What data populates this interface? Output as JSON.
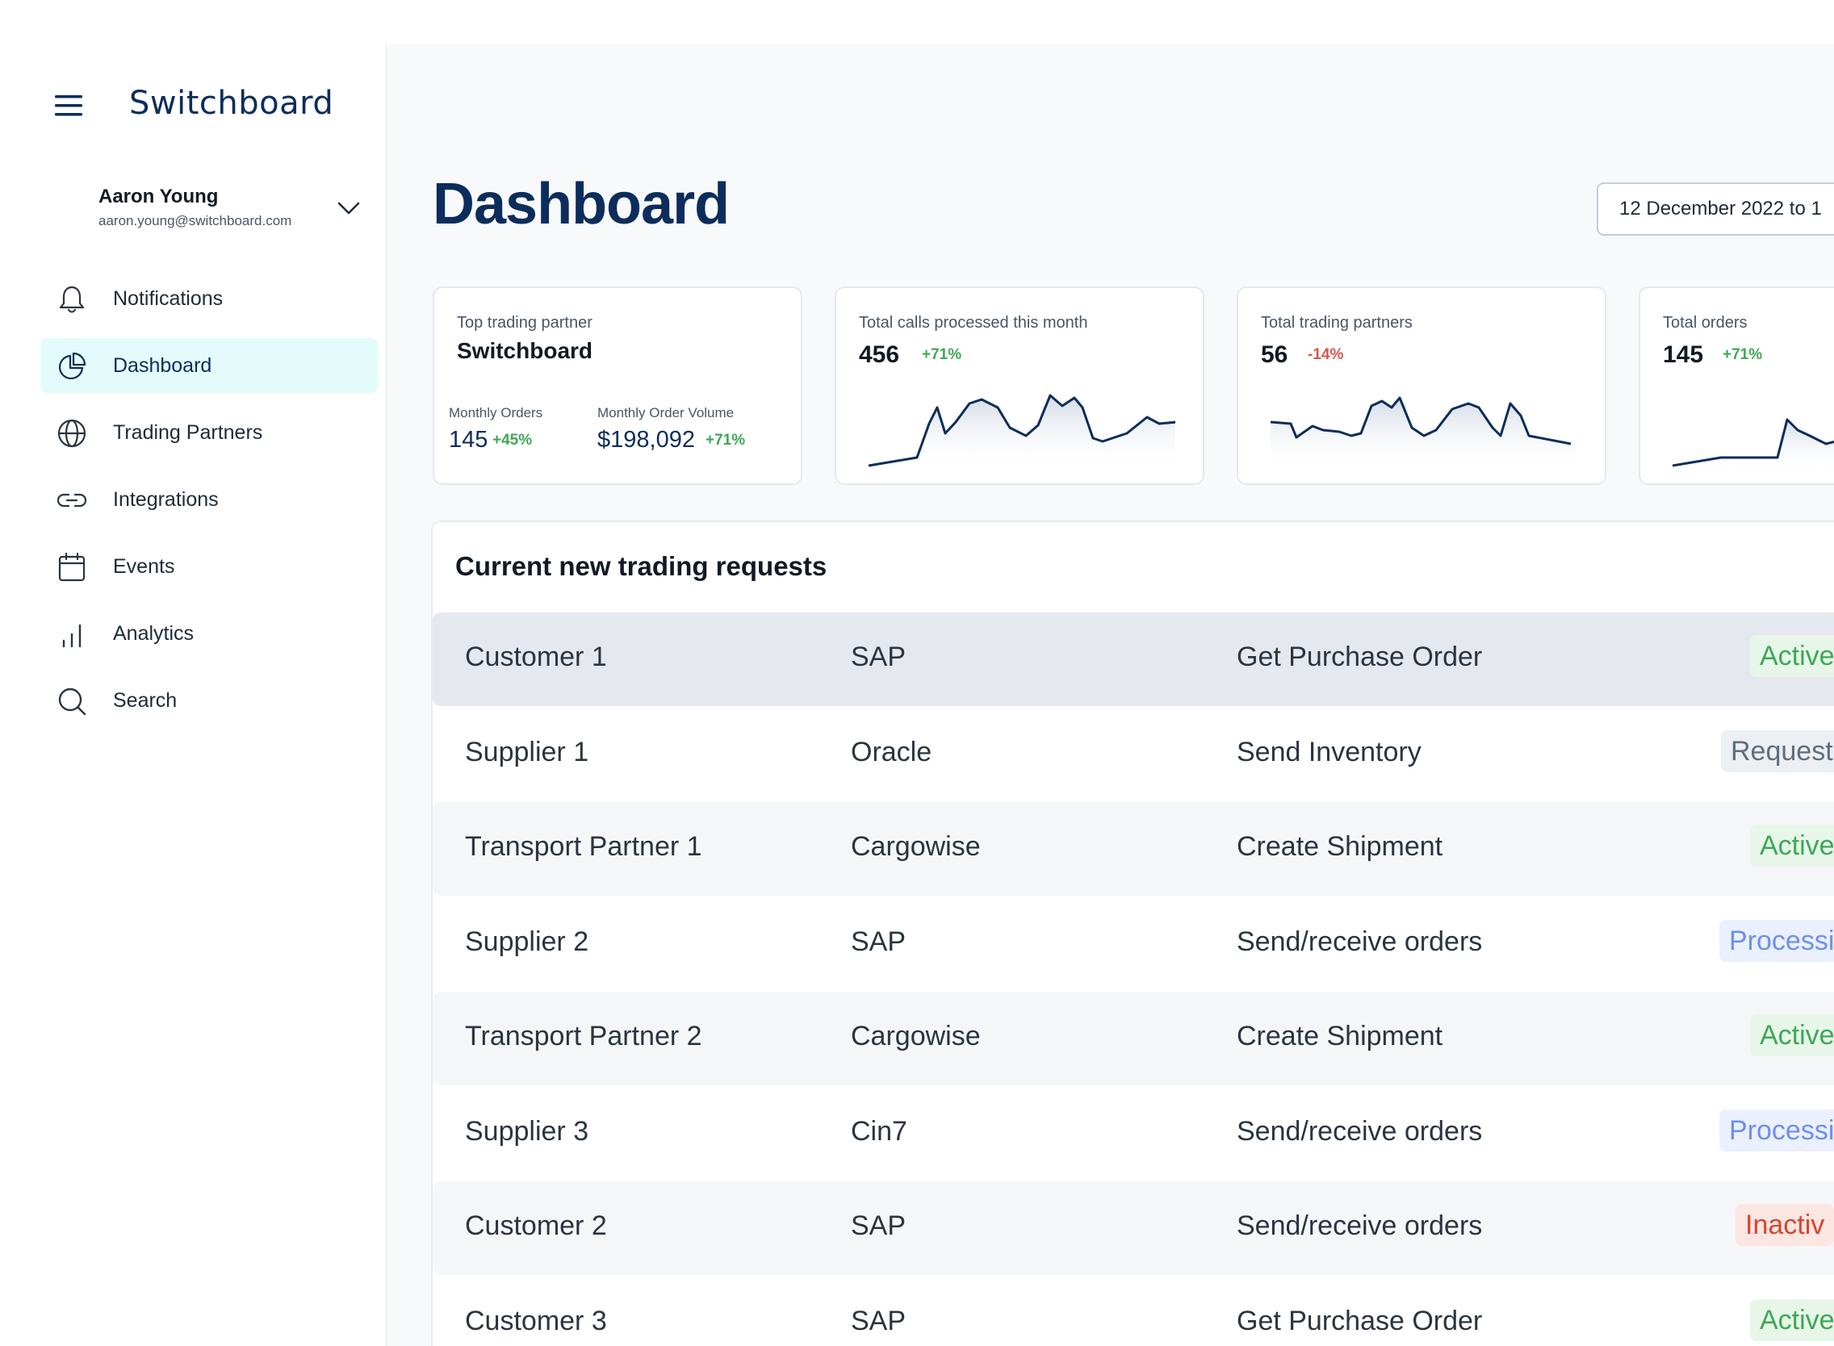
{
  "app": {
    "logo_text": "Switchboard"
  },
  "user": {
    "name": "Aaron Young",
    "email": "aaron.young@switchboard.com"
  },
  "sidebar": {
    "items": [
      {
        "label": "Notifications",
        "icon": "bell-icon"
      },
      {
        "label": "Dashboard",
        "icon": "pie-chart-icon",
        "active": true
      },
      {
        "label": "Trading Partners",
        "icon": "globe-icon"
      },
      {
        "label": "Integrations",
        "icon": "link-icon"
      },
      {
        "label": "Events",
        "icon": "calendar-icon"
      },
      {
        "label": "Analytics",
        "icon": "bar-chart-icon"
      },
      {
        "label": "Search",
        "icon": "search-icon"
      }
    ]
  },
  "page": {
    "title": "Dashboard",
    "date_range": "12 December 2022 to 1"
  },
  "cards": {
    "top_partner": {
      "label": "Top trading partner",
      "name": "Switchboard",
      "orders_label": "Monthly Orders",
      "orders_value": "145",
      "orders_change": "+45%",
      "volume_label": "Monthly Order Volume",
      "volume_value": "$198,092",
      "volume_change": "+71%"
    },
    "calls": {
      "label": "Total calls processed this month",
      "value": "456",
      "change": "+71%"
    },
    "partners": {
      "label": "Total trading partners",
      "value": "56",
      "change": "-14%"
    },
    "orders": {
      "label": "Total orders",
      "value": "145",
      "change": "+71%"
    }
  },
  "colors": {
    "brand": "#0c2d5c",
    "active_nav": "#e3fbfb",
    "positive": "#3ea856",
    "negative": "#d9534f"
  },
  "table": {
    "title": "Current new trading requests",
    "rows": [
      {
        "partner": "Customer 1",
        "system": "SAP",
        "action": "Get Purchase Order",
        "status": "Active"
      },
      {
        "partner": "Supplier 1",
        "system": "Oracle",
        "action": "Send Inventory",
        "status": "Request"
      },
      {
        "partner": "Transport Partner 1",
        "system": "Cargowise",
        "action": "Create Shipment",
        "status": "Active"
      },
      {
        "partner": "Supplier 2",
        "system": "SAP",
        "action": "Send/receive orders",
        "status": "Processi"
      },
      {
        "partner": "Transport Partner 2",
        "system": "Cargowise",
        "action": "Create Shipment",
        "status": "Active"
      },
      {
        "partner": "Supplier 3",
        "system": "Cin7",
        "action": "Send/receive orders",
        "status": "Processi"
      },
      {
        "partner": "Customer 2",
        "system": "SAP",
        "action": "Send/receive orders",
        "status": "Inactiv"
      },
      {
        "partner": "Customer 3",
        "system": "SAP",
        "action": "Get Purchase Order",
        "status": "Active"
      }
    ]
  }
}
